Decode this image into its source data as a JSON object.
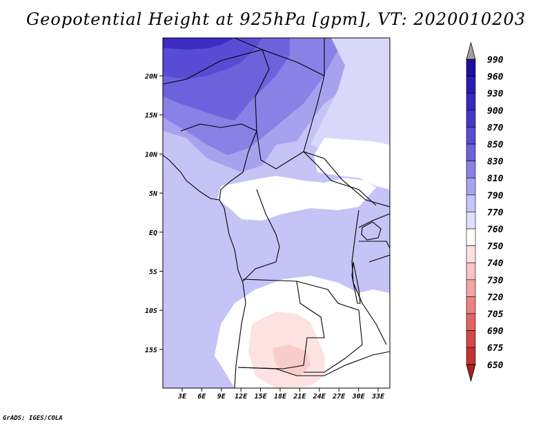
{
  "title": "Geopotential Height at 925hPa [gpm], VT: 2020010203",
  "credit": "GrADS: IGES/COLA",
  "lat_labels": [
    "20N",
    "15N",
    "10N",
    "5N",
    "EQ",
    "5S",
    "10S",
    "15S"
  ],
  "lon_labels": [
    "3E",
    "6E",
    "9E",
    "12E",
    "15E",
    "18E",
    "21E",
    "24E",
    "27E",
    "30E",
    "33E"
  ],
  "colorbar": {
    "levels": [
      "990",
      "960",
      "930",
      "900",
      "870",
      "850",
      "830",
      "810",
      "790",
      "770",
      "760",
      "750",
      "740",
      "730",
      "720",
      "705",
      "690",
      "675",
      "650"
    ],
    "colors": [
      "#1d0fa0",
      "#2a1cb4",
      "#3728c0",
      "#4635c8",
      "#5a4bd4",
      "#6e62dc",
      "#8a80e6",
      "#a8a2ee",
      "#c6c3f6",
      "#e0dffc",
      "#ffffff",
      "#fde0e0",
      "#f8c4c4",
      "#f2a4a4",
      "#ea8484",
      "#e06464",
      "#d44848",
      "#c43232",
      "#a82020"
    ],
    "top_arrow_color": "#a0a0a0",
    "bottom_arrow_color": "#a82020"
  },
  "fill_colors": {
    "c990": "#3b2cc2",
    "c870": "#5a4bd4",
    "c850": "#6e62dc",
    "c830": "#8a80e6",
    "c810": "#a8a2ee",
    "c790": "#c6c3f6",
    "c770": "#d9d8fb",
    "c760": "#ffffff",
    "c750": "#fde2e2",
    "c740": "#f9cccc"
  }
}
